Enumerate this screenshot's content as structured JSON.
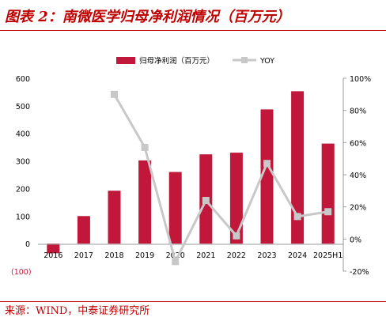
{
  "figure": {
    "title": "图表 2：南微医学归母净利润情况（百万元）",
    "source": "来源：WIND，中泰证券研究所",
    "colors": {
      "title": "#c00000",
      "bar": "#c0173a",
      "line": "#c8c8c8",
      "axis_text": "#000000"
    }
  },
  "chart_data": {
    "type": "bar",
    "categories": [
      "2016",
      "2017",
      "2018",
      "2019",
      "2020",
      "2021",
      "2022",
      "2023",
      "2024",
      "2025H1"
    ],
    "series": [
      {
        "name": "归母净利润（百万元）",
        "type": "bar",
        "axis": "left",
        "values": [
          -35,
          100,
          192,
          302,
          260,
          324,
          330,
          487,
          553,
          363
        ]
      },
      {
        "name": "YOY",
        "type": "line",
        "axis": "right",
        "values": [
          null,
          null,
          90,
          57,
          -14,
          24,
          2,
          47,
          14,
          17
        ]
      }
    ],
    "y_left": {
      "lim": [
        -100,
        600
      ],
      "ticks": [
        -100,
        0,
        100,
        200,
        300,
        400,
        500,
        600
      ],
      "tick_labels": [
        "(100)",
        "0",
        "100",
        "200",
        "300",
        "400",
        "500",
        "600"
      ]
    },
    "y_right": {
      "lim": [
        -20,
        100
      ],
      "ticks": [
        -20,
        0,
        20,
        40,
        60,
        80,
        100
      ],
      "tick_labels": [
        "-20%",
        "0%",
        "20%",
        "40%",
        "60%",
        "80%",
        "100%"
      ]
    },
    "grid": false,
    "legend_position": "top-center"
  }
}
